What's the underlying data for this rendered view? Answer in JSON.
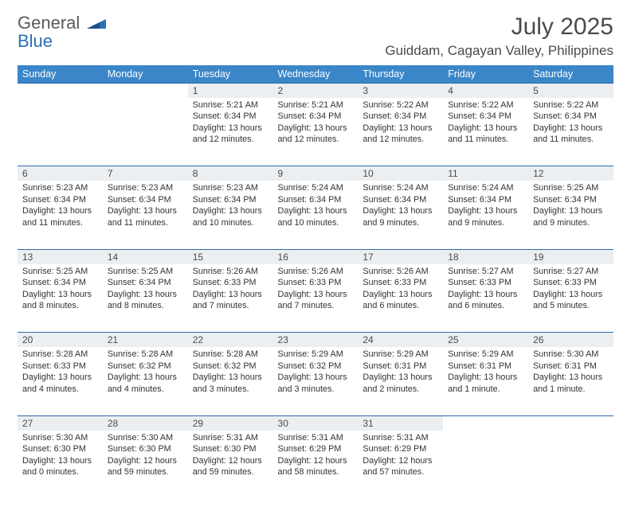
{
  "logo": {
    "part1": "General",
    "part2": "Blue"
  },
  "title": "July 2025",
  "location": "Guiddam, Cagayan Valley, Philippines",
  "colors": {
    "header_bg": "#3a86c8",
    "header_text": "#ffffff",
    "daynum_bg": "#eceff1",
    "divider": "#2f6aa8",
    "body_text": "#333333",
    "title_text": "#4a4a4a",
    "logo_gray": "#5a5a5a",
    "logo_blue": "#2a6fb5",
    "page_bg": "#ffffff"
  },
  "typography": {
    "month_title_pt": 30,
    "location_pt": 17,
    "weekday_pt": 12.5,
    "daynum_pt": 12,
    "cell_pt": 10.8,
    "font_family": "Arial"
  },
  "weekdays": [
    "Sunday",
    "Monday",
    "Tuesday",
    "Wednesday",
    "Thursday",
    "Friday",
    "Saturday"
  ],
  "weeks": [
    [
      null,
      null,
      {
        "n": "1",
        "sr": "Sunrise: 5:21 AM",
        "ss": "Sunset: 6:34 PM",
        "dl": "Daylight: 13 hours and 12 minutes."
      },
      {
        "n": "2",
        "sr": "Sunrise: 5:21 AM",
        "ss": "Sunset: 6:34 PM",
        "dl": "Daylight: 13 hours and 12 minutes."
      },
      {
        "n": "3",
        "sr": "Sunrise: 5:22 AM",
        "ss": "Sunset: 6:34 PM",
        "dl": "Daylight: 13 hours and 12 minutes."
      },
      {
        "n": "4",
        "sr": "Sunrise: 5:22 AM",
        "ss": "Sunset: 6:34 PM",
        "dl": "Daylight: 13 hours and 11 minutes."
      },
      {
        "n": "5",
        "sr": "Sunrise: 5:22 AM",
        "ss": "Sunset: 6:34 PM",
        "dl": "Daylight: 13 hours and 11 minutes."
      }
    ],
    [
      {
        "n": "6",
        "sr": "Sunrise: 5:23 AM",
        "ss": "Sunset: 6:34 PM",
        "dl": "Daylight: 13 hours and 11 minutes."
      },
      {
        "n": "7",
        "sr": "Sunrise: 5:23 AM",
        "ss": "Sunset: 6:34 PM",
        "dl": "Daylight: 13 hours and 11 minutes."
      },
      {
        "n": "8",
        "sr": "Sunrise: 5:23 AM",
        "ss": "Sunset: 6:34 PM",
        "dl": "Daylight: 13 hours and 10 minutes."
      },
      {
        "n": "9",
        "sr": "Sunrise: 5:24 AM",
        "ss": "Sunset: 6:34 PM",
        "dl": "Daylight: 13 hours and 10 minutes."
      },
      {
        "n": "10",
        "sr": "Sunrise: 5:24 AM",
        "ss": "Sunset: 6:34 PM",
        "dl": "Daylight: 13 hours and 9 minutes."
      },
      {
        "n": "11",
        "sr": "Sunrise: 5:24 AM",
        "ss": "Sunset: 6:34 PM",
        "dl": "Daylight: 13 hours and 9 minutes."
      },
      {
        "n": "12",
        "sr": "Sunrise: 5:25 AM",
        "ss": "Sunset: 6:34 PM",
        "dl": "Daylight: 13 hours and 9 minutes."
      }
    ],
    [
      {
        "n": "13",
        "sr": "Sunrise: 5:25 AM",
        "ss": "Sunset: 6:34 PM",
        "dl": "Daylight: 13 hours and 8 minutes."
      },
      {
        "n": "14",
        "sr": "Sunrise: 5:25 AM",
        "ss": "Sunset: 6:34 PM",
        "dl": "Daylight: 13 hours and 8 minutes."
      },
      {
        "n": "15",
        "sr": "Sunrise: 5:26 AM",
        "ss": "Sunset: 6:33 PM",
        "dl": "Daylight: 13 hours and 7 minutes."
      },
      {
        "n": "16",
        "sr": "Sunrise: 5:26 AM",
        "ss": "Sunset: 6:33 PM",
        "dl": "Daylight: 13 hours and 7 minutes."
      },
      {
        "n": "17",
        "sr": "Sunrise: 5:26 AM",
        "ss": "Sunset: 6:33 PM",
        "dl": "Daylight: 13 hours and 6 minutes."
      },
      {
        "n": "18",
        "sr": "Sunrise: 5:27 AM",
        "ss": "Sunset: 6:33 PM",
        "dl": "Daylight: 13 hours and 6 minutes."
      },
      {
        "n": "19",
        "sr": "Sunrise: 5:27 AM",
        "ss": "Sunset: 6:33 PM",
        "dl": "Daylight: 13 hours and 5 minutes."
      }
    ],
    [
      {
        "n": "20",
        "sr": "Sunrise: 5:28 AM",
        "ss": "Sunset: 6:33 PM",
        "dl": "Daylight: 13 hours and 4 minutes."
      },
      {
        "n": "21",
        "sr": "Sunrise: 5:28 AM",
        "ss": "Sunset: 6:32 PM",
        "dl": "Daylight: 13 hours and 4 minutes."
      },
      {
        "n": "22",
        "sr": "Sunrise: 5:28 AM",
        "ss": "Sunset: 6:32 PM",
        "dl": "Daylight: 13 hours and 3 minutes."
      },
      {
        "n": "23",
        "sr": "Sunrise: 5:29 AM",
        "ss": "Sunset: 6:32 PM",
        "dl": "Daylight: 13 hours and 3 minutes."
      },
      {
        "n": "24",
        "sr": "Sunrise: 5:29 AM",
        "ss": "Sunset: 6:31 PM",
        "dl": "Daylight: 13 hours and 2 minutes."
      },
      {
        "n": "25",
        "sr": "Sunrise: 5:29 AM",
        "ss": "Sunset: 6:31 PM",
        "dl": "Daylight: 13 hours and 1 minute."
      },
      {
        "n": "26",
        "sr": "Sunrise: 5:30 AM",
        "ss": "Sunset: 6:31 PM",
        "dl": "Daylight: 13 hours and 1 minute."
      }
    ],
    [
      {
        "n": "27",
        "sr": "Sunrise: 5:30 AM",
        "ss": "Sunset: 6:30 PM",
        "dl": "Daylight: 13 hours and 0 minutes."
      },
      {
        "n": "28",
        "sr": "Sunrise: 5:30 AM",
        "ss": "Sunset: 6:30 PM",
        "dl": "Daylight: 12 hours and 59 minutes."
      },
      {
        "n": "29",
        "sr": "Sunrise: 5:31 AM",
        "ss": "Sunset: 6:30 PM",
        "dl": "Daylight: 12 hours and 59 minutes."
      },
      {
        "n": "30",
        "sr": "Sunrise: 5:31 AM",
        "ss": "Sunset: 6:29 PM",
        "dl": "Daylight: 12 hours and 58 minutes."
      },
      {
        "n": "31",
        "sr": "Sunrise: 5:31 AM",
        "ss": "Sunset: 6:29 PM",
        "dl": "Daylight: 12 hours and 57 minutes."
      },
      null,
      null
    ]
  ]
}
